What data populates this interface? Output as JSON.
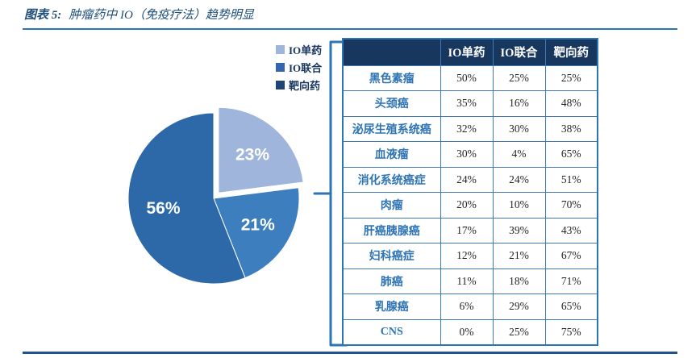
{
  "figure": {
    "caption_label": "图表 5:",
    "caption_title": "肿瘤药中 IO（免疫疗法）趋势明显",
    "accent_color": "#2E74B5"
  },
  "chart_data": [
    {
      "type": "pie",
      "title": "",
      "labels": [
        "IO单药",
        "IO联合",
        "靶向药"
      ],
      "values": [
        23,
        21,
        56
      ],
      "data_labels": [
        "23%",
        "21%",
        "56%"
      ],
      "colors": [
        "#9FB5DC",
        "#3D7EBF",
        "#2D68A8"
      ],
      "legend_colors": [
        "#9FB5DC",
        "#3466AE",
        "#1F4577"
      ],
      "start_angle_deg": 0,
      "direction": "clockwise",
      "exploded_slice": "IO单药",
      "legend_position": "top-right"
    },
    {
      "type": "table",
      "columns": [
        "",
        "IO单药",
        "IO联合",
        "靶向药"
      ],
      "rows": [
        {
          "label": "黑色素瘤",
          "values": [
            "50%",
            "25%",
            "25%"
          ]
        },
        {
          "label": "头颈癌",
          "values": [
            "35%",
            "16%",
            "48%"
          ]
        },
        {
          "label": "泌尿生殖系统癌",
          "values": [
            "32%",
            "30%",
            "38%"
          ]
        },
        {
          "label": "血液瘤",
          "values": [
            "30%",
            "4%",
            "65%"
          ]
        },
        {
          "label": "消化系统癌症",
          "values": [
            "24%",
            "24%",
            "51%"
          ]
        },
        {
          "label": "肉瘤",
          "values": [
            "20%",
            "10%",
            "70%"
          ]
        },
        {
          "label": "肝癌胰腺癌",
          "values": [
            "17%",
            "39%",
            "43%"
          ]
        },
        {
          "label": "妇科癌症",
          "values": [
            "12%",
            "21%",
            "67%"
          ]
        },
        {
          "label": "肺癌",
          "values": [
            "11%",
            "18%",
            "71%"
          ]
        },
        {
          "label": "乳腺癌",
          "values": [
            "6%",
            "29%",
            "65%"
          ]
        },
        {
          "label": "CNS",
          "values": [
            "0%",
            "25%",
            "75%"
          ]
        }
      ],
      "header_bg": "#17375E",
      "header_fg": "#FFFFFF",
      "border_color": "#2E74B5"
    }
  ]
}
